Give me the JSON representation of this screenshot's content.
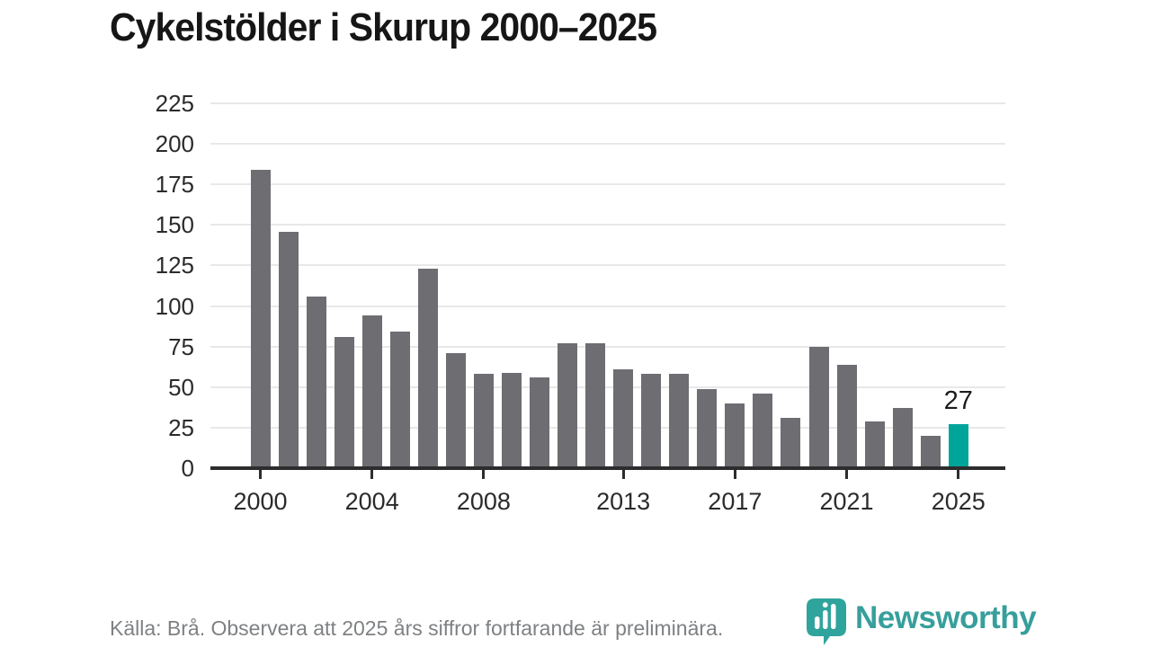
{
  "title": "Cykelstölder i Skurup 2000–2025",
  "footer": {
    "source_note": "Källa: Brå. Observera att 2025 års siffror fortfarande är preliminära.",
    "brand": "Newsworthy"
  },
  "colors": {
    "bar": "#6e6d72",
    "highlight": "#00a59a",
    "brand_teal": "#379f9b",
    "gridline": "#e8e8e8",
    "axis": "#2d2d2d",
    "tick_text": "#2b2b2b",
    "muted_text": "#7e8183"
  },
  "chart_data": {
    "type": "bar",
    "title": "Cykelstölder i Skurup 2000–2025",
    "categories": [
      2000,
      2001,
      2002,
      2003,
      2004,
      2005,
      2006,
      2007,
      2008,
      2009,
      2010,
      2011,
      2012,
      2013,
      2014,
      2015,
      2016,
      2017,
      2018,
      2019,
      2020,
      2021,
      2022,
      2023,
      2024,
      2025
    ],
    "values": [
      184,
      146,
      106,
      81,
      94,
      84,
      123,
      71,
      58,
      59,
      56,
      77,
      77,
      61,
      58,
      58,
      49,
      40,
      46,
      31,
      75,
      64,
      29,
      37,
      20,
      27
    ],
    "xlabel": "",
    "ylabel": "",
    "ylim": [
      0,
      225
    ],
    "ytick_step": 25,
    "xticks": [
      2000,
      2004,
      2008,
      2013,
      2017,
      2021,
      2025
    ],
    "grid": true,
    "legend": "none",
    "highlight_category": 2025,
    "value_labels": [
      {
        "category": 2025,
        "text": "27"
      }
    ]
  }
}
